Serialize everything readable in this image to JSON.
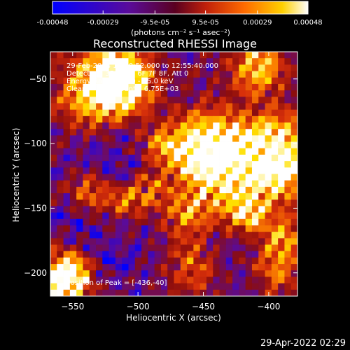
{
  "colorbar": {
    "ticks": [
      "-0.00048",
      "-0.00029",
      "-9.5e-05",
      "9.5e-05",
      "0.00029",
      "0.00048"
    ],
    "tick_values": [
      -0.00048,
      -0.00029,
      -9.5e-05,
      9.5e-05,
      0.00029,
      0.00048
    ],
    "range": [
      -0.00048,
      0.00048
    ],
    "unit_label": "(photons cm⁻² s⁻¹ asec⁻²)"
  },
  "chart_data": {
    "type": "heatmap",
    "title": "Reconstructed RHESSI Image",
    "xlabel": "Heliocentric X (arcsec)",
    "ylabel": "Heliocentric Y (arcsec)",
    "xlim": [
      -567,
      -378
    ],
    "ylim": [
      -218,
      -29
    ],
    "xticks": [
      -550,
      -500,
      -450,
      -400
    ],
    "yticks": [
      -50,
      -100,
      -150,
      -200
    ],
    "xtick_labels": [
      "−550",
      "−500",
      "−450",
      "−400"
    ],
    "ytick_labels": [
      "−50",
      "−100",
      "−150",
      "−200"
    ],
    "colormap": [
      "#0000ff",
      "#5a0b9a",
      "#8c0d0d",
      "#d8300a",
      "#ff8a00",
      "#ffe000",
      "#ffffff"
    ],
    "peak_position": [
      -436,
      -40
    ]
  },
  "annotations": {
    "line1": "29-Feb-2004 12:50:52.000 to 12:55:40.000",
    "line2": "Detectors: 3F 4F 5F 6F 7F 8F, Att 0",
    "line3": "Energy Range: 12.0 - 25.0 keV",
    "line4": "Clean     Total counts: 6.75E+03",
    "peak": "Position of Peak = [-436,-40]"
  },
  "timestamp": "29-Apr-2022 02:29"
}
